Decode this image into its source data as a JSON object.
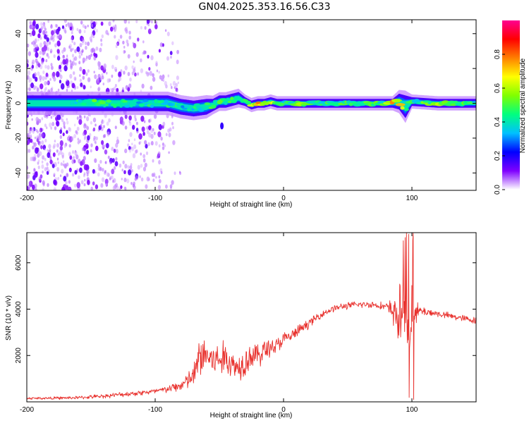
{
  "title": "GN04.2025.353.16.56.C33",
  "chart_data": [
    {
      "type": "heatmap",
      "name": "spectrogram",
      "xlabel": "Height of straight line (km)",
      "ylabel": "Frequency (Hz)",
      "xlim": [
        -200,
        150
      ],
      "ylim": [
        -50,
        48
      ],
      "xticks": [
        -200,
        -100,
        0,
        100
      ],
      "yticks": [
        -40,
        -20,
        0,
        20,
        40
      ],
      "ridge": {
        "x": [
          -200,
          -160,
          -150,
          -140,
          -130,
          -120,
          -110,
          -100,
          -90,
          -80,
          -70,
          -60,
          -55,
          -50,
          -45,
          -40,
          -35,
          -30,
          -25,
          -20,
          -15,
          -10,
          -5,
          0,
          10,
          20,
          40,
          60,
          80,
          85,
          90,
          95,
          100,
          120,
          150
        ],
        "center_hz": [
          0,
          0,
          0,
          0,
          0,
          0,
          0,
          0,
          0,
          -2,
          -3,
          -2,
          -1,
          1,
          1,
          2,
          3,
          1,
          -1,
          0,
          0,
          1,
          0,
          0,
          0,
          0,
          0,
          0,
          0,
          0,
          1,
          -2,
          1,
          0,
          0
        ],
        "half_width_hz": [
          4,
          4,
          4,
          4,
          4,
          4,
          4,
          4,
          4,
          4,
          4,
          4,
          3,
          3,
          3,
          3,
          3,
          2,
          2,
          2,
          2,
          2,
          2,
          2,
          2,
          2,
          2,
          2,
          2,
          2,
          4,
          6,
          2,
          2,
          2
        ],
        "amplitude": [
          0.35,
          0.5,
          0.55,
          0.5,
          0.45,
          0.5,
          0.45,
          0.5,
          0.5,
          0.45,
          0.45,
          0.5,
          0.55,
          0.5,
          0.55,
          0.55,
          0.5,
          0.55,
          0.65,
          0.8,
          0.7,
          0.7,
          0.55,
          0.5,
          0.6,
          0.55,
          0.5,
          0.55,
          0.55,
          0.95,
          0.85,
          0.5,
          0.5,
          0.6,
          0.5
        ]
      },
      "noise_extent_km": [
        -200,
        -80
      ]
    },
    {
      "type": "line",
      "name": "snr",
      "xlabel": "Height of straight line (km)",
      "ylabel": "SNR (10 * v/v)",
      "color": "#e8302c",
      "xlim": [
        -200,
        150
      ],
      "ylim": [
        0,
        7300
      ],
      "xticks": [
        -200,
        -100,
        0,
        100
      ],
      "yticks": [
        2000,
        4000,
        6000
      ],
      "x": [
        -200,
        -180,
        -160,
        -140,
        -120,
        -100,
        -90,
        -80,
        -70,
        -65,
        -60,
        -55,
        -50,
        -45,
        -40,
        -35,
        -30,
        -25,
        -20,
        -15,
        -10,
        -5,
        0,
        5,
        10,
        20,
        30,
        40,
        50,
        60,
        70,
        80,
        85,
        90,
        95,
        100,
        105,
        110,
        120,
        130,
        140,
        150
      ],
      "values": [
        150,
        160,
        180,
        250,
        350,
        450,
        550,
        700,
        1100,
        2000,
        2000,
        1800,
        1800,
        1900,
        1600,
        1500,
        1800,
        2000,
        2000,
        2200,
        2400,
        2400,
        2700,
        2800,
        3000,
        3400,
        3800,
        4050,
        4150,
        4200,
        4200,
        4100,
        3900,
        3700,
        3800,
        3500,
        3900,
        3900,
        3800,
        3700,
        3600,
        3500
      ],
      "noise_amplitude": [
        60,
        60,
        70,
        90,
        110,
        130,
        160,
        250,
        500,
        1000,
        900,
        800,
        700,
        800,
        600,
        600,
        700,
        600,
        500,
        600,
        400,
        400,
        300,
        300,
        250,
        200,
        150,
        150,
        150,
        150,
        150,
        180,
        600,
        1300,
        1400,
        1400,
        300,
        200,
        150,
        150,
        150,
        150
      ]
    }
  ],
  "colorbar": {
    "label": "Normalized spectral amplitude",
    "range": [
      0,
      1
    ],
    "ticks": [
      "0.0",
      "0.2",
      "0.4",
      "0.6",
      "0.8"
    ],
    "tick_values": [
      0,
      0.2,
      0.4,
      0.6,
      0.8
    ],
    "stops": [
      "#ffffff",
      "#7f00ff",
      "#0000ff",
      "#00c0ff",
      "#00ff80",
      "#80ff00",
      "#ffff00",
      "#ff8000",
      "#ff0000",
      "#ff0090"
    ]
  }
}
